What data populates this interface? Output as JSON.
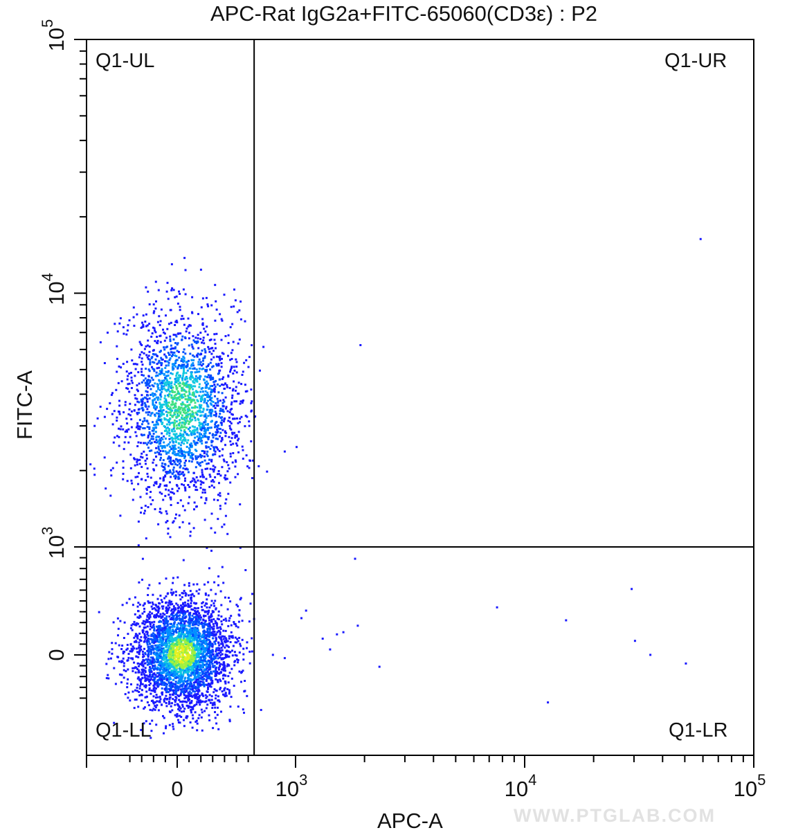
{
  "chart_data": {
    "type": "scatter",
    "title": "APC-Rat IgG2a+FITC-65060(CD3ε) : P2",
    "xlabel": "APC-A",
    "ylabel": "FITC-A",
    "x_scale": "biexponential",
    "y_scale": "biexponential",
    "xlim": [
      -500,
      100000
    ],
    "ylim": [
      -500,
      100000
    ],
    "x_ticks": [
      {
        "value": 0,
        "label": "0",
        "exp": ""
      },
      {
        "value": 1000,
        "label": "10",
        "exp": "3"
      },
      {
        "value": 10000,
        "label": "10",
        "exp": "4"
      },
      {
        "value": 100000,
        "label": "10",
        "exp": "5"
      }
    ],
    "y_ticks": [
      {
        "value": 0,
        "label": "0",
        "exp": ""
      },
      {
        "value": 1000,
        "label": "10",
        "exp": "3"
      },
      {
        "value": 10000,
        "label": "10",
        "exp": "4"
      },
      {
        "value": 100000,
        "label": "10",
        "exp": "5"
      }
    ],
    "gates": {
      "x_threshold": 650,
      "y_threshold": 1000
    },
    "quadrants": {
      "ul": "Q1-UL",
      "ur": "Q1-UR",
      "ll": "Q1-LL",
      "lr": "Q1-LR"
    },
    "populations": [
      {
        "name": "FITC+ / APC-",
        "center": [
          30,
          3600
        ],
        "approx_events": 2200
      },
      {
        "name": "FITC- / APC-",
        "center": [
          30,
          20
        ],
        "approx_events": 3200
      }
    ],
    "outlier_points": [
      [
        720,
        6200
      ],
      [
        690,
        5000
      ],
      [
        650,
        3300
      ],
      [
        900,
        2400
      ],
      [
        1000,
        2500
      ],
      [
        1900,
        6300
      ],
      [
        680,
        2100
      ],
      [
        750,
        2000
      ],
      [
        58000,
        16500
      ],
      [
        1800,
        900
      ],
      [
        1050,
        350
      ],
      [
        1100,
        420
      ],
      [
        1300,
        160
      ],
      [
        1400,
        60
      ],
      [
        1500,
        200
      ],
      [
        1600,
        220
      ],
      [
        1850,
        280
      ],
      [
        2300,
        -100
      ],
      [
        7500,
        450
      ],
      [
        15000,
        330
      ],
      [
        29000,
        620
      ],
      [
        30000,
        140
      ],
      [
        35000,
        10
      ],
      [
        50000,
        -70
      ],
      [
        12500,
        -430
      ],
      [
        800,
        10
      ],
      [
        900,
        -20
      ],
      [
        700,
        -500
      ]
    ],
    "grid": false,
    "legend": "none"
  },
  "watermark": "WWW.PTGLAB.COM"
}
